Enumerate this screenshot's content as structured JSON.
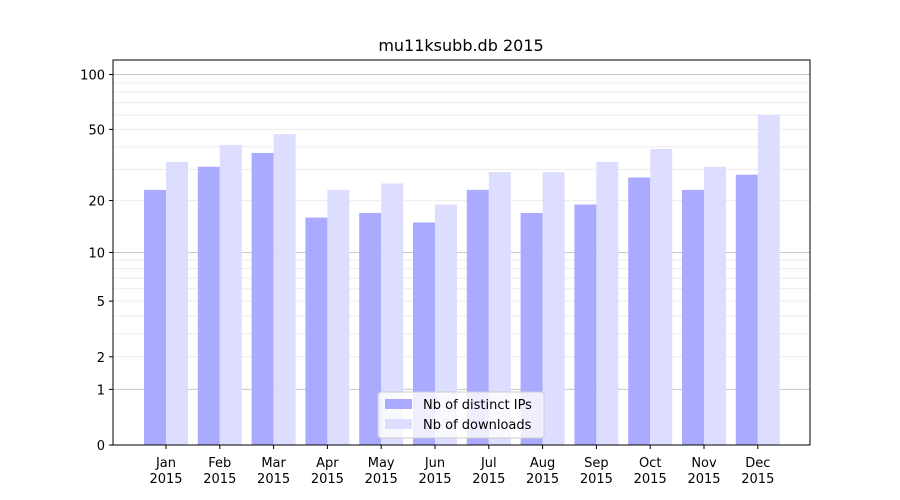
{
  "chart_data": {
    "type": "bar",
    "title": "mu11ksubb.db 2015",
    "xlabel": "",
    "ylabel": "",
    "categories": [
      [
        "Jan",
        "2015"
      ],
      [
        "Feb",
        "2015"
      ],
      [
        "Mar",
        "2015"
      ],
      [
        "Apr",
        "2015"
      ],
      [
        "May",
        "2015"
      ],
      [
        "Jun",
        "2015"
      ],
      [
        "Jul",
        "2015"
      ],
      [
        "Aug",
        "2015"
      ],
      [
        "Sep",
        "2015"
      ],
      [
        "Oct",
        "2015"
      ],
      [
        "Nov",
        "2015"
      ],
      [
        "Dec",
        "2015"
      ]
    ],
    "series": [
      {
        "name": "Nb of distinct IPs",
        "color": "#aaaaff",
        "values": [
          23,
          31,
          37,
          16,
          17,
          15,
          23,
          17,
          19,
          27,
          23,
          28
        ]
      },
      {
        "name": "Nb of downloads",
        "color": "#ddddff",
        "values": [
          33,
          41,
          47,
          23,
          25,
          19,
          29,
          29,
          33,
          39,
          31,
          60
        ]
      }
    ],
    "y_scale": "log(1+y)",
    "ylim": [
      0,
      120
    ],
    "y_ticks": [
      0,
      1,
      2,
      5,
      10,
      20,
      50,
      100
    ],
    "grid": true,
    "legend_position": "bottom-center"
  }
}
